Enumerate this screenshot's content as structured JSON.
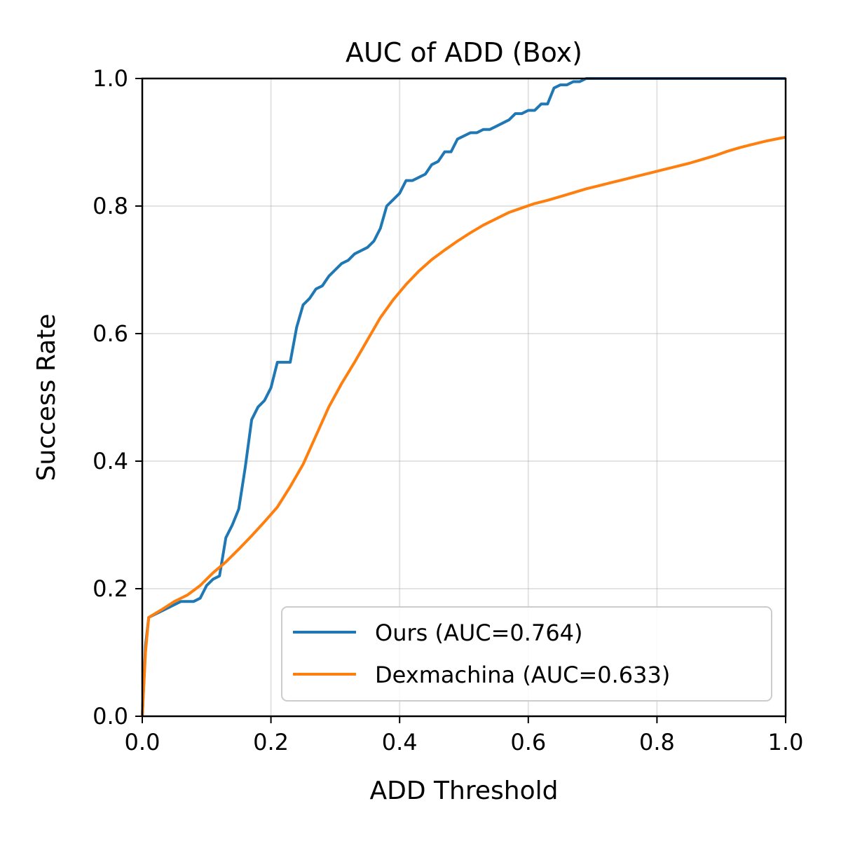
{
  "chart_data": {
    "type": "line",
    "title": "AUC of ADD (Box)",
    "xlabel": "ADD Threshold",
    "ylabel": "Success Rate",
    "xlim": [
      0.0,
      1.0
    ],
    "ylim": [
      0.0,
      1.0
    ],
    "xticks": [
      "0.0",
      "0.2",
      "0.4",
      "0.6",
      "0.8",
      "1.0"
    ],
    "yticks": [
      "0.0",
      "0.2",
      "0.4",
      "0.6",
      "0.8",
      "1.0"
    ],
    "grid": true,
    "legend_position": "lower-right",
    "series": [
      {
        "name": "Ours (AUC=0.764)",
        "color": "#1f77b4",
        "points": [
          [
            0.0,
            0.0
          ],
          [
            0.005,
            0.11
          ],
          [
            0.01,
            0.155
          ],
          [
            0.03,
            0.165
          ],
          [
            0.06,
            0.18
          ],
          [
            0.08,
            0.18
          ],
          [
            0.09,
            0.185
          ],
          [
            0.1,
            0.205
          ],
          [
            0.11,
            0.215
          ],
          [
            0.12,
            0.22
          ],
          [
            0.13,
            0.28
          ],
          [
            0.14,
            0.3
          ],
          [
            0.15,
            0.325
          ],
          [
            0.16,
            0.39
          ],
          [
            0.17,
            0.465
          ],
          [
            0.18,
            0.485
          ],
          [
            0.19,
            0.495
          ],
          [
            0.2,
            0.515
          ],
          [
            0.21,
            0.555
          ],
          [
            0.23,
            0.555
          ],
          [
            0.24,
            0.61
          ],
          [
            0.25,
            0.645
          ],
          [
            0.26,
            0.655
          ],
          [
            0.27,
            0.67
          ],
          [
            0.28,
            0.675
          ],
          [
            0.29,
            0.69
          ],
          [
            0.3,
            0.7
          ],
          [
            0.31,
            0.71
          ],
          [
            0.32,
            0.715
          ],
          [
            0.33,
            0.725
          ],
          [
            0.34,
            0.73
          ],
          [
            0.35,
            0.735
          ],
          [
            0.36,
            0.745
          ],
          [
            0.37,
            0.765
          ],
          [
            0.38,
            0.8
          ],
          [
            0.39,
            0.81
          ],
          [
            0.4,
            0.82
          ],
          [
            0.41,
            0.84
          ],
          [
            0.42,
            0.84
          ],
          [
            0.43,
            0.845
          ],
          [
            0.44,
            0.85
          ],
          [
            0.45,
            0.865
          ],
          [
            0.46,
            0.87
          ],
          [
            0.47,
            0.885
          ],
          [
            0.48,
            0.885
          ],
          [
            0.49,
            0.905
          ],
          [
            0.5,
            0.91
          ],
          [
            0.51,
            0.915
          ],
          [
            0.52,
            0.915
          ],
          [
            0.53,
            0.92
          ],
          [
            0.54,
            0.92
          ],
          [
            0.55,
            0.925
          ],
          [
            0.56,
            0.93
          ],
          [
            0.57,
            0.935
          ],
          [
            0.58,
            0.945
          ],
          [
            0.59,
            0.945
          ],
          [
            0.6,
            0.95
          ],
          [
            0.61,
            0.95
          ],
          [
            0.62,
            0.96
          ],
          [
            0.63,
            0.96
          ],
          [
            0.64,
            0.985
          ],
          [
            0.65,
            0.99
          ],
          [
            0.66,
            0.99
          ],
          [
            0.67,
            0.995
          ],
          [
            0.68,
            0.995
          ],
          [
            0.69,
            1.0
          ],
          [
            0.7,
            1.0
          ],
          [
            0.8,
            1.0
          ],
          [
            0.9,
            1.0
          ],
          [
            1.0,
            1.0
          ]
        ]
      },
      {
        "name": "Dexmachina (AUC=0.633)",
        "color": "#ff7f0e",
        "points": [
          [
            0.0,
            0.0
          ],
          [
            0.005,
            0.1
          ],
          [
            0.01,
            0.155
          ],
          [
            0.03,
            0.167
          ],
          [
            0.05,
            0.18
          ],
          [
            0.07,
            0.19
          ],
          [
            0.09,
            0.205
          ],
          [
            0.11,
            0.225
          ],
          [
            0.13,
            0.242
          ],
          [
            0.15,
            0.262
          ],
          [
            0.17,
            0.283
          ],
          [
            0.19,
            0.305
          ],
          [
            0.21,
            0.328
          ],
          [
            0.23,
            0.36
          ],
          [
            0.25,
            0.395
          ],
          [
            0.27,
            0.44
          ],
          [
            0.29,
            0.485
          ],
          [
            0.31,
            0.522
          ],
          [
            0.33,
            0.555
          ],
          [
            0.35,
            0.59
          ],
          [
            0.37,
            0.625
          ],
          [
            0.39,
            0.653
          ],
          [
            0.41,
            0.677
          ],
          [
            0.43,
            0.698
          ],
          [
            0.45,
            0.716
          ],
          [
            0.47,
            0.731
          ],
          [
            0.49,
            0.745
          ],
          [
            0.51,
            0.758
          ],
          [
            0.53,
            0.77
          ],
          [
            0.55,
            0.78
          ],
          [
            0.57,
            0.79
          ],
          [
            0.59,
            0.797
          ],
          [
            0.61,
            0.804
          ],
          [
            0.63,
            0.809
          ],
          [
            0.65,
            0.815
          ],
          [
            0.67,
            0.821
          ],
          [
            0.69,
            0.827
          ],
          [
            0.71,
            0.832
          ],
          [
            0.73,
            0.837
          ],
          [
            0.75,
            0.842
          ],
          [
            0.77,
            0.847
          ],
          [
            0.79,
            0.852
          ],
          [
            0.81,
            0.857
          ],
          [
            0.83,
            0.862
          ],
          [
            0.85,
            0.867
          ],
          [
            0.87,
            0.873
          ],
          [
            0.89,
            0.879
          ],
          [
            0.91,
            0.886
          ],
          [
            0.93,
            0.892
          ],
          [
            0.95,
            0.897
          ],
          [
            0.97,
            0.902
          ],
          [
            0.99,
            0.906
          ],
          [
            1.0,
            0.908
          ]
        ]
      }
    ]
  }
}
